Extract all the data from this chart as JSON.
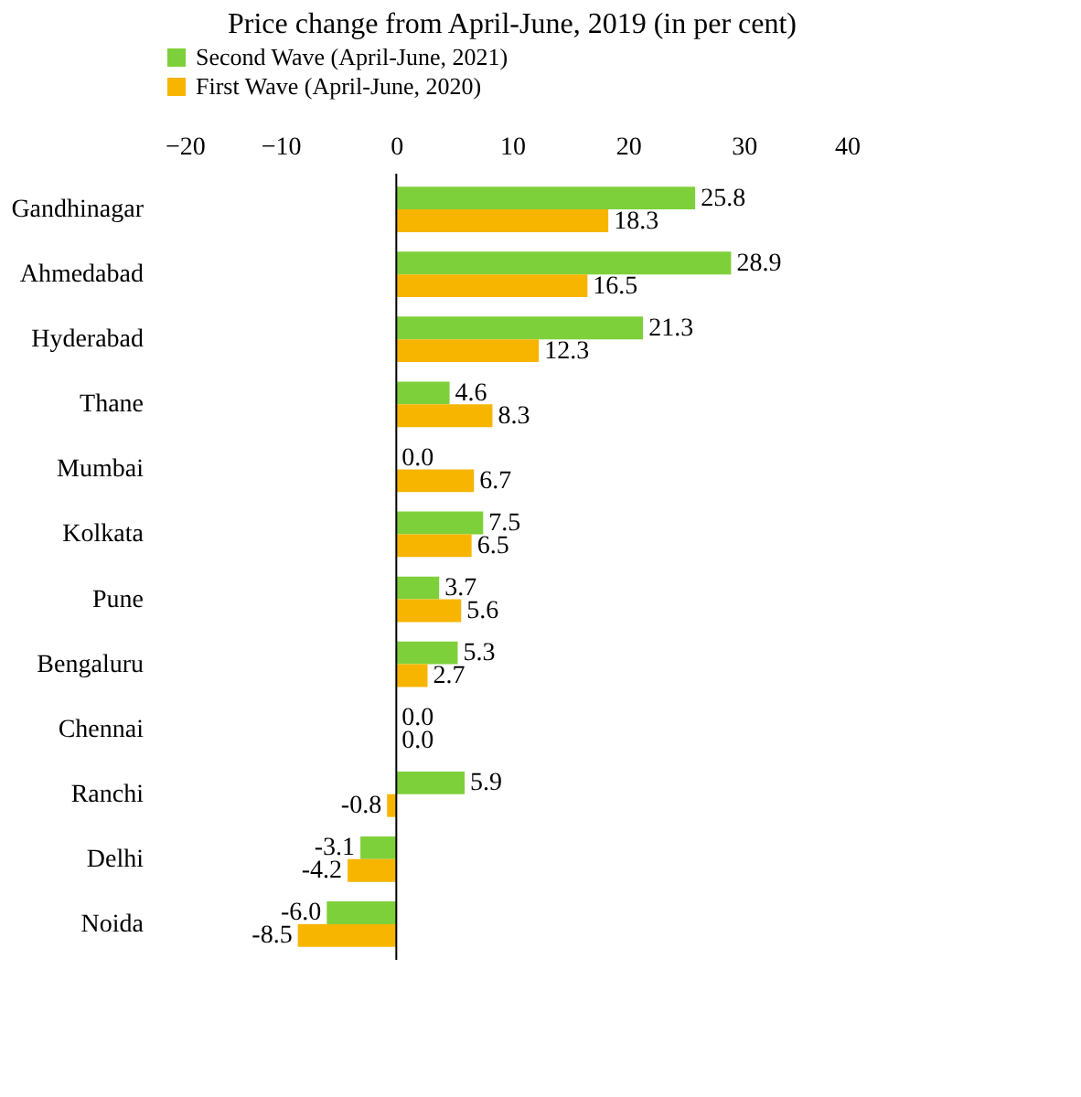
{
  "chart_data": {
    "type": "bar",
    "orientation": "horizontal",
    "title": "Price change from April-June, 2019 (in per cent)",
    "categories": [
      "Gandhinagar",
      "Ahmedabad",
      "Hyderabad",
      "Thane",
      "Mumbai",
      "Kolkata",
      "Pune",
      "Bengaluru",
      "Chennai",
      "Ranchi",
      "Delhi",
      "Noida"
    ],
    "series": [
      {
        "name": "Second Wave (April-June, 2021)",
        "color": "#7ed03a",
        "values": [
          25.8,
          28.9,
          21.3,
          4.6,
          0,
          7.5,
          3.7,
          5.3,
          0,
          5.9,
          -3.1,
          -6
        ],
        "value_labels": [
          "25.8",
          "28.9",
          "21.3",
          "4.6",
          "0.0",
          "7.5",
          "3.7",
          "5.3",
          "0.0",
          "5.9",
          "-3.1",
          "-6.0"
        ]
      },
      {
        "name": "First Wave (April-June, 2020)",
        "color": "#f7b500",
        "values": [
          18.3,
          16.5,
          12.3,
          8.3,
          6.7,
          6.5,
          5.6,
          2.7,
          0,
          -0.8,
          -4.2,
          -8.5
        ],
        "value_labels": [
          "18.3",
          "16.5",
          "12.3",
          "8.3",
          "6.7",
          "6.5",
          "5.6",
          "2.7",
          "0.0",
          "-0.8",
          "-4.2",
          "-8.5"
        ]
      }
    ],
    "xlim": [
      -20,
      40
    ],
    "xticks": [
      -20,
      -10,
      0,
      10,
      20,
      30,
      40
    ],
    "legend": "top"
  }
}
